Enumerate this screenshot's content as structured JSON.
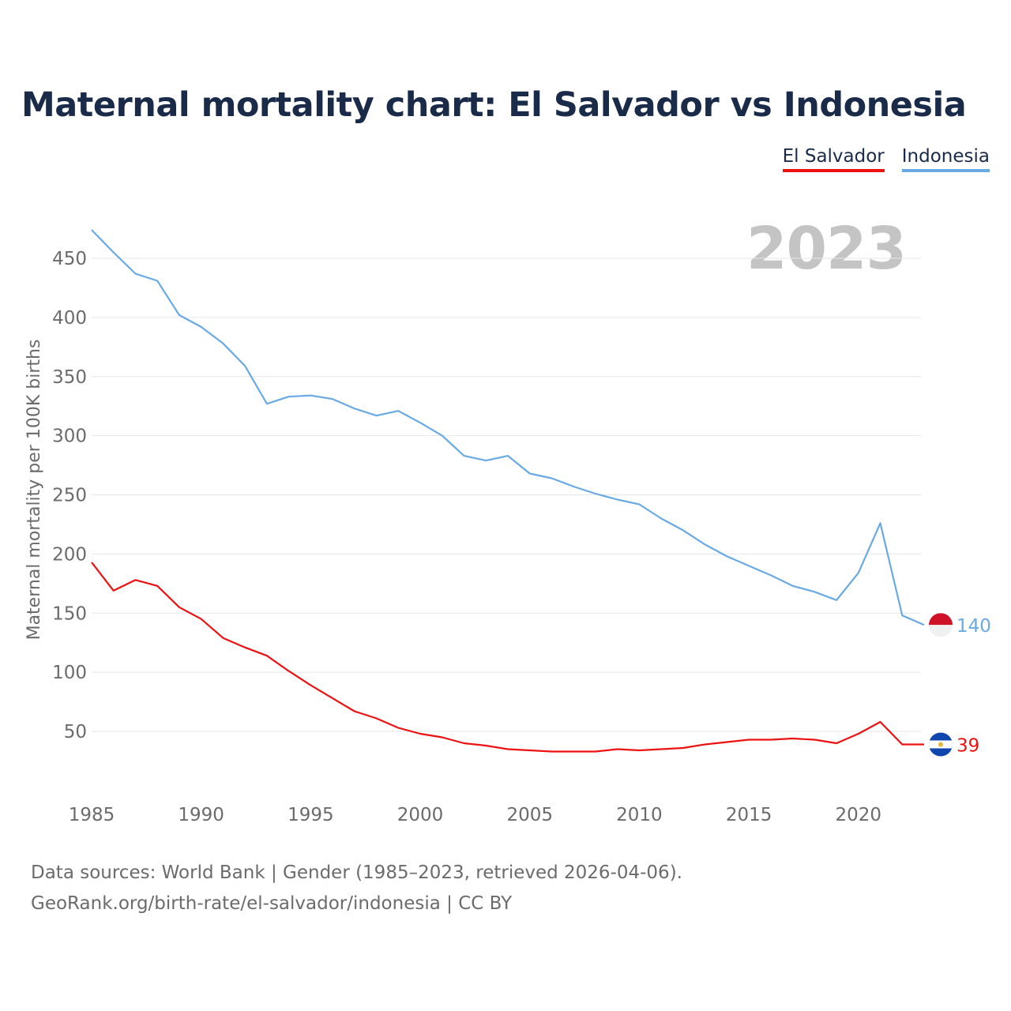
{
  "chart_data": {
    "type": "line",
    "title": "Maternal mortality chart: El Salvador vs Indonesia",
    "ylabel": "Maternal mortality per 100K births",
    "xlabel": "",
    "year_label": "2023",
    "x": [
      1985,
      1986,
      1987,
      1988,
      1989,
      1990,
      1991,
      1992,
      1993,
      1994,
      1995,
      1996,
      1997,
      1998,
      1999,
      2000,
      2001,
      2002,
      2003,
      2004,
      2005,
      2006,
      2007,
      2008,
      2009,
      2010,
      2011,
      2012,
      2013,
      2014,
      2015,
      2016,
      2017,
      2018,
      2019,
      2020,
      2021,
      2022,
      2023
    ],
    "x_ticks": [
      1985,
      1990,
      1995,
      2000,
      2005,
      2010,
      2015,
      2020
    ],
    "y_ticks": [
      50,
      100,
      150,
      200,
      250,
      300,
      350,
      400,
      450
    ],
    "ylim": [
      -10,
      480
    ],
    "xlim": [
      1985,
      2023
    ],
    "grid": true,
    "legend_position": "top-right",
    "series": [
      {
        "name": "El Salvador",
        "color": "#ee1111",
        "flag": "el-salvador-flag",
        "end_label": "39",
        "values": [
          193,
          169,
          178,
          173,
          155,
          145,
          129,
          121,
          114,
          101,
          89,
          78,
          67,
          61,
          53,
          48,
          45,
          40,
          38,
          35,
          34,
          33,
          33,
          33,
          35,
          34,
          35,
          36,
          39,
          41,
          43,
          43,
          44,
          43,
          40,
          48,
          58,
          39,
          39
        ]
      },
      {
        "name": "Indonesia",
        "color": "#6aaae4",
        "flag": "indonesia-flag",
        "end_label": "140",
        "values": [
          474,
          455,
          437,
          431,
          402,
          392,
          378,
          359,
          327,
          333,
          334,
          331,
          323,
          317,
          321,
          311,
          300,
          283,
          279,
          283,
          268,
          264,
          257,
          251,
          246,
          242,
          230,
          220,
          208,
          198,
          190,
          182,
          173,
          168,
          161,
          184,
          226,
          148,
          140
        ]
      }
    ]
  },
  "footer": {
    "line1": "Data sources: World Bank | Gender (1985–2023, retrieved 2026-04-06).",
    "line2": "GeoRank.org/birth-rate/el-salvador/indonesia | CC BY"
  }
}
